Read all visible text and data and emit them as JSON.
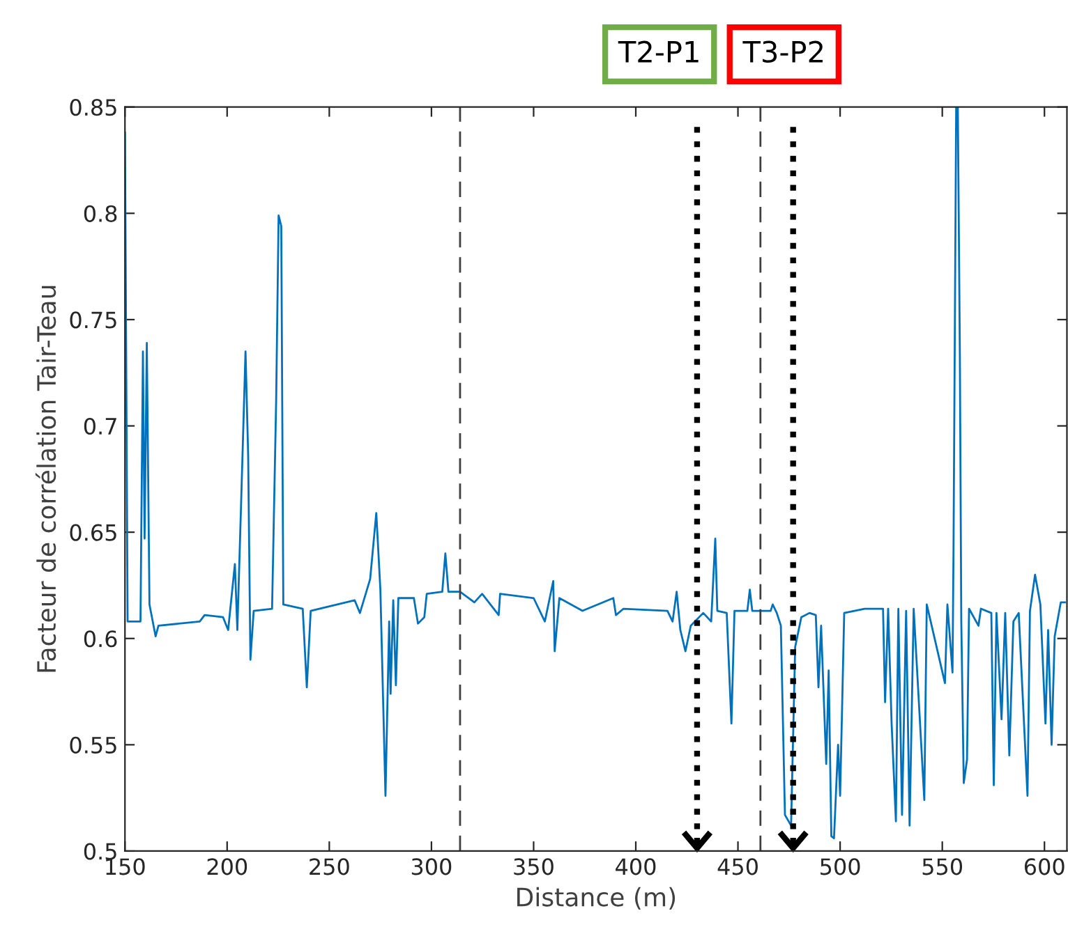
{
  "chart_data": {
    "type": "line",
    "xlabel": "Distance (m)",
    "ylabel": "Facteur de corrélation Tair-Teau",
    "series": [
      {
        "color": "#0072bd",
        "x": [
          150,
          151.3,
          157.6,
          158.8,
          159.6,
          160.7,
          162,
          165,
          166.4,
          186.6,
          189,
          198,
          200.5,
          203.8,
          205,
          206.8,
          209,
          210.3,
          211.4,
          213,
          222,
          224,
          225.2,
          226.5,
          227.5,
          237,
          239,
          240.9,
          262.4,
          265,
          270,
          273,
          275,
          277.5,
          279.3,
          280,
          281.3,
          282.6,
          283.8,
          291.4,
          293.4,
          296.5,
          297.7,
          305.3,
          306.8,
          308.3,
          314,
          321,
          324.8,
          332.9,
          333.6,
          350,
          355.5,
          359.6,
          360.3,
          362.6,
          373.9,
          389,
          390.3,
          394,
          415.5,
          418,
          420,
          421.8,
          424.3,
          426.9,
          433,
          436.9,
          438.9,
          439.9,
          444.5,
          446.8,
          448.3,
          454.6,
          455.8,
          457,
          466,
          467,
          469,
          471,
          473,
          476,
          478,
          481,
          485,
          488.1,
          489.4,
          490.7,
          493.2,
          494.4,
          495.7,
          497,
          499,
          500,
          502,
          512,
          521,
          522,
          523.5,
          525.2,
          527.3,
          528.5,
          530.3,
          532.3,
          534,
          536,
          541.2,
          542.4,
          551.3,
          552.5,
          555,
          555.5,
          556.8,
          557.6,
          558.6,
          559.3,
          560.5,
          562.1,
          563.1,
          567.7,
          568.9,
          574,
          575.2,
          576.5,
          579,
          580.8,
          582.8,
          584.8,
          587.4,
          591.7,
          592.9,
          595.4,
          598,
          600.5,
          601.8,
          603.5,
          605,
          608,
          610
        ],
        "values": [
          0.838,
          0.608,
          0.608,
          0.735,
          0.647,
          0.739,
          0.616,
          0.601,
          0.606,
          0.608,
          0.611,
          0.61,
          0.604,
          0.635,
          0.604,
          0.662,
          0.735,
          0.686,
          0.59,
          0.613,
          0.614,
          0.712,
          0.799,
          0.794,
          0.616,
          0.614,
          0.577,
          0.613,
          0.618,
          0.612,
          0.628,
          0.659,
          0.623,
          0.526,
          0.608,
          0.574,
          0.618,
          0.578,
          0.619,
          0.619,
          0.607,
          0.61,
          0.621,
          0.622,
          0.64,
          0.622,
          0.622,
          0.617,
          0.621,
          0.611,
          0.621,
          0.619,
          0.608,
          0.627,
          0.594,
          0.619,
          0.613,
          0.619,
          0.611,
          0.614,
          0.613,
          0.608,
          0.622,
          0.604,
          0.594,
          0.606,
          0.612,
          0.608,
          0.647,
          0.613,
          0.612,
          0.56,
          0.613,
          0.613,
          0.623,
          0.613,
          0.613,
          0.616,
          0.612,
          0.606,
          0.517,
          0.512,
          0.596,
          0.61,
          0.612,
          0.611,
          0.577,
          0.606,
          0.541,
          0.585,
          0.507,
          0.506,
          0.55,
          0.526,
          0.612,
          0.614,
          0.614,
          0.57,
          0.614,
          0.56,
          0.514,
          0.614,
          0.517,
          0.613,
          0.512,
          0.614,
          0.524,
          0.616,
          0.579,
          0.616,
          0.584,
          0.642,
          0.85,
          0.85,
          0.734,
          0.608,
          0.532,
          0.543,
          0.614,
          0.606,
          0.614,
          0.612,
          0.531,
          0.612,
          0.562,
          0.612,
          0.545,
          0.608,
          0.612,
          0.526,
          0.613,
          0.63,
          0.616,
          0.56,
          0.604,
          0.55,
          0.601,
          0.617,
          0.617
        ]
      }
    ],
    "xlim": [
      150,
      611
    ],
    "ylim": [
      0.5,
      0.85
    ],
    "xticks": [
      150,
      200,
      250,
      300,
      350,
      400,
      450,
      500,
      550,
      600
    ],
    "yticks": [
      0.5,
      0.55,
      0.6,
      0.65,
      0.7,
      0.75,
      0.8,
      0.85
    ],
    "grid": false,
    "legend": false,
    "marker": "none",
    "line_style": "solid",
    "ref_lines": [
      {
        "axis": "x",
        "value": 314,
        "color": "#404040",
        "line_style": "dashed"
      },
      {
        "axis": "x",
        "value": 461,
        "color": "#404040",
        "line_style": "dashed"
      },
      {
        "axis": "x",
        "value": 430,
        "label": "T2-P1",
        "color": "#000000",
        "line_style": "dotted"
      },
      {
        "axis": "x",
        "value": 477,
        "label": "T3-P2",
        "color": "#000000",
        "line_style": "dotted"
      }
    ]
  }
}
